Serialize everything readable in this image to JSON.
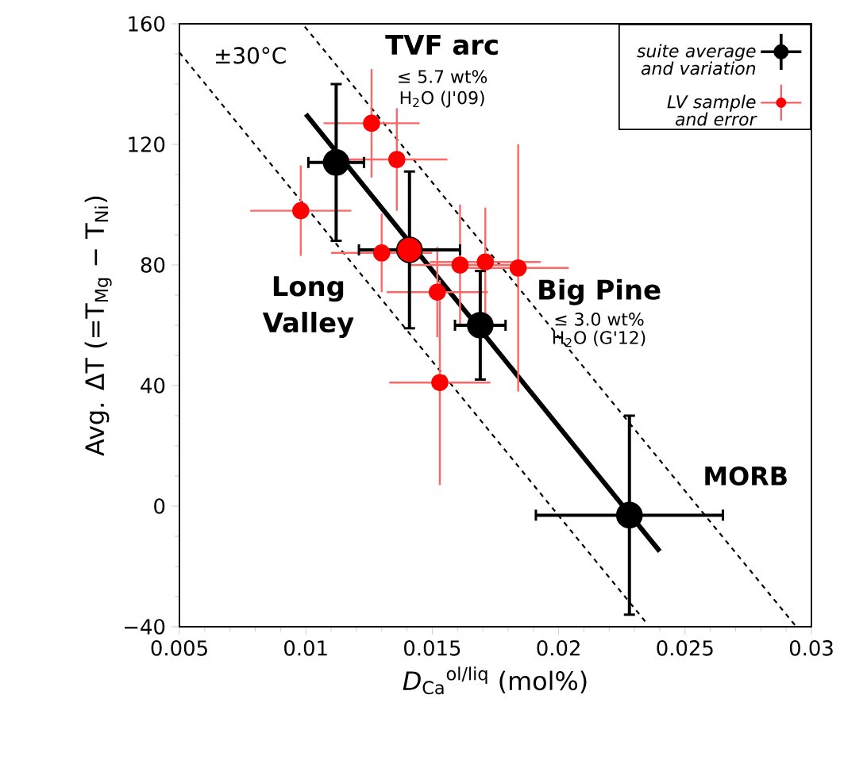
{
  "chart_data": {
    "type": "scatter",
    "xlabel": "*D*$_{Ca}$$^{ol/liq}$ (mol%)",
    "ylabel": "Avg. ΔT (=T$_{Mg}$ − T$_{Ni}$)",
    "xlim": [
      0.005,
      0.03
    ],
    "ylim": [
      -40,
      160
    ],
    "xticks": [
      0.005,
      0.01,
      0.015,
      0.02,
      0.025,
      0.03
    ],
    "yticks": [
      {
        "value": -40,
        "label": "−40"
      },
      0,
      40,
      80,
      120,
      160
    ],
    "marker": "circle",
    "legend": "top right",
    "grid": false,
    "annotations": [
      "±30°C",
      "TVF arc",
      "≤ 5.7 wt%",
      "H$_{2}$O (J'09)",
      "Long Valley",
      "Big Pine",
      "≤ 3.0 wt%",
      "H$_{2}$O (G'12)",
      "MORB"
    ],
    "series": [
      {
        "type": "line",
        "color": "#000000",
        "marker": "none",
        "x": [
          0.01,
          0.024
        ],
        "values": [
          130,
          -15
        ]
      },
      {
        "type": "line",
        "color": "#000000",
        "marker": "none",
        "line_style": "dashed",
        "x": [
          0.005,
          0.0235
        ],
        "values": [
          150.5,
          -39
        ]
      },
      {
        "type": "line",
        "color": "#000000",
        "marker": "none",
        "line_style": "dashed",
        "x": [
          0.00996,
          0.0294
        ],
        "values": [
          159,
          -40
        ]
      },
      {
        "name": "LV sample and error",
        "color": "#ff0000",
        "x": [
          0.0126,
          0.0136,
          0.0098,
          0.013,
          0.0161,
          0.0171,
          0.0184,
          0.0152,
          0.0153
        ],
        "values": [
          127,
          115,
          98,
          84,
          80,
          81,
          79,
          71,
          41
        ],
        "errors": [
          18,
          17,
          15,
          13,
          20,
          18,
          41,
          15,
          34
        ],
        "xerrors": [
          0.0019,
          0.002,
          0.002,
          0.002,
          0.002,
          0.0022,
          0.002,
          0.002,
          0.002
        ]
      },
      {
        "name": "suite average and variation",
        "color": "#000000",
        "colors": [
          "#000000",
          "#ff0000",
          "#000000",
          "#000000"
        ],
        "x": [
          0.0112,
          0.0141,
          0.0169,
          0.0228
        ],
        "values": [
          114,
          85,
          60,
          -3
        ],
        "errors": [
          26,
          26,
          18,
          33
        ],
        "xerrors": [
          0.0011,
          0.002,
          0.001,
          0.0037
        ]
      }
    ]
  }
}
